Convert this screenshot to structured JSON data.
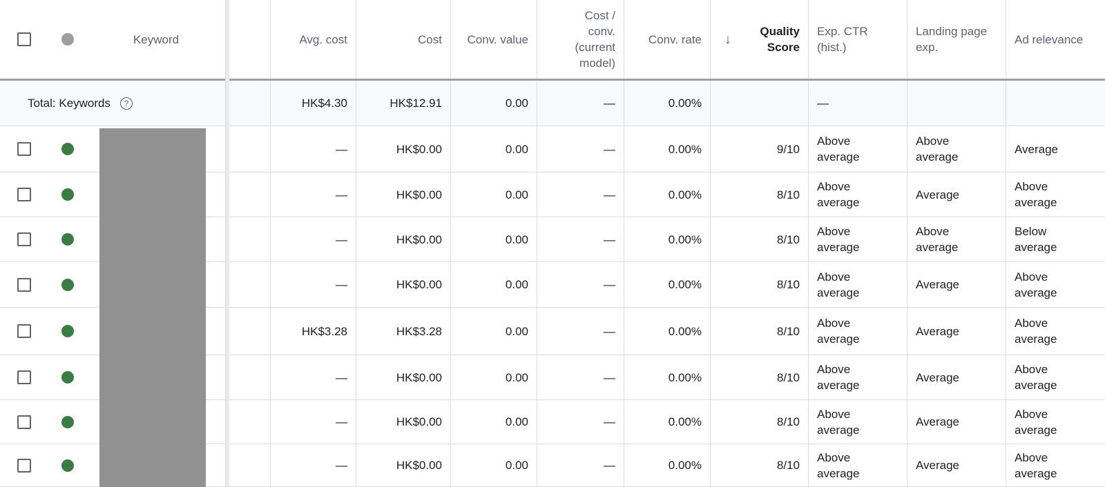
{
  "colors": {
    "status_active": "#3a7d44",
    "status_header": "#9e9e9e",
    "redaction": "#919191"
  },
  "header": {
    "keyword": "Keyword",
    "avg_cost": "Avg. cost",
    "cost": "Cost",
    "conv_value": "Conv. value",
    "cost_per_conv": "Cost / conv. (current model)",
    "conv_rate": "Conv. rate",
    "quality_score_line1": "Quality",
    "quality_score_line2": "Score",
    "sort_icon": "arrow-down-icon",
    "exp_ctr": "Exp. CTR (hist.)",
    "landing_page": "Landing page exp.",
    "ad_relevance": "Ad relevance"
  },
  "total": {
    "label": "Total: Keywords",
    "help_icon": "help-circle-icon",
    "avg_cost": "HK$4.30",
    "cost": "HK$12.91",
    "conv_value": "0.00",
    "cost_per_conv": "—",
    "conv_rate": "0.00%",
    "quality_score": "",
    "exp_ctr": "—",
    "landing_page": "",
    "ad_relevance": ""
  },
  "rows": [
    {
      "avg_cost": "—",
      "cost": "HK$0.00",
      "conv_value": "0.00",
      "cost_per_conv": "—",
      "conv_rate": "0.00%",
      "quality_score": "9/10",
      "exp_ctr": "Above average",
      "landing_page": "Above average",
      "ad_relevance": "Average"
    },
    {
      "avg_cost": "—",
      "cost": "HK$0.00",
      "conv_value": "0.00",
      "cost_per_conv": "—",
      "conv_rate": "0.00%",
      "quality_score": "8/10",
      "exp_ctr": "Above average",
      "landing_page": "Average",
      "ad_relevance": "Above average"
    },
    {
      "avg_cost": "—",
      "cost": "HK$0.00",
      "conv_value": "0.00",
      "cost_per_conv": "—",
      "conv_rate": "0.00%",
      "quality_score": "8/10",
      "exp_ctr": "Above average",
      "landing_page": "Above average",
      "ad_relevance": "Below average"
    },
    {
      "avg_cost": "—",
      "cost": "HK$0.00",
      "conv_value": "0.00",
      "cost_per_conv": "—",
      "conv_rate": "0.00%",
      "quality_score": "8/10",
      "exp_ctr": "Above average",
      "landing_page": "Average",
      "ad_relevance": "Above average"
    },
    {
      "avg_cost": "HK$3.28",
      "cost": "HK$3.28",
      "conv_value": "0.00",
      "cost_per_conv": "—",
      "conv_rate": "0.00%",
      "quality_score": "8/10",
      "exp_ctr": "Above average",
      "landing_page": "Average",
      "ad_relevance": "Above average"
    },
    {
      "avg_cost": "—",
      "cost": "HK$0.00",
      "conv_value": "0.00",
      "cost_per_conv": "—",
      "conv_rate": "0.00%",
      "quality_score": "8/10",
      "exp_ctr": "Above average",
      "landing_page": "Average",
      "ad_relevance": "Above average"
    },
    {
      "avg_cost": "—",
      "cost": "HK$0.00",
      "conv_value": "0.00",
      "cost_per_conv": "—",
      "conv_rate": "0.00%",
      "quality_score": "8/10",
      "exp_ctr": "Above average",
      "landing_page": "Average",
      "ad_relevance": "Above average"
    },
    {
      "avg_cost": "—",
      "cost": "HK$0.00",
      "conv_value": "0.00",
      "cost_per_conv": "—",
      "conv_rate": "0.00%",
      "quality_score": "8/10",
      "exp_ctr": "Above average",
      "landing_page": "Average",
      "ad_relevance": "Above average"
    }
  ]
}
